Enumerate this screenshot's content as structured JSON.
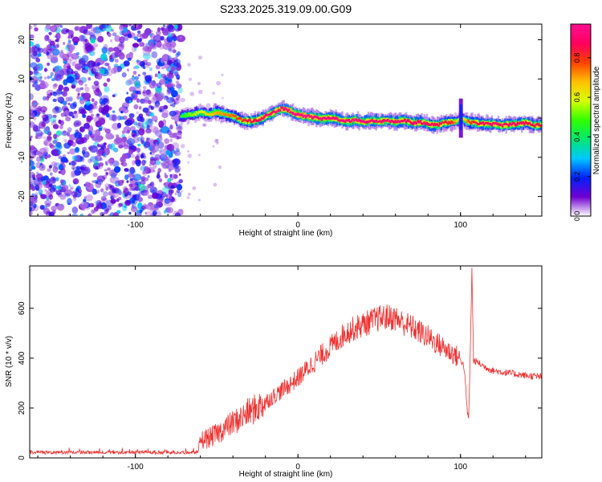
{
  "title": "S233.2025.319.09.00.G09",
  "chart_data": [
    {
      "type": "heatmap",
      "xlabel": "Height of straight line (km)",
      "ylabel": "Frequency (Hz)",
      "xlim": [
        -165,
        150
      ],
      "ylim": [
        -25,
        24
      ],
      "xticks": [
        -100,
        0,
        100
      ],
      "yticks": [
        -20,
        -10,
        0,
        10,
        20
      ],
      "colorbar": {
        "label": "Normalized spectral amplitude",
        "range": [
          0,
          0.97
        ],
        "ticks": [
          0.0,
          0.2,
          0.4,
          0.6,
          0.8
        ],
        "tick_labels": [
          "0.0",
          "0.2",
          "0.4",
          "0.6",
          "0.8"
        ],
        "colormap": [
          "#ffffff",
          "#7000d0",
          "#0020ff",
          "#00c8ff",
          "#00e870",
          "#30ff00",
          "#d8ff00",
          "#ffc000",
          "#ff4000",
          "#ff0060",
          "#ff1090"
        ]
      },
      "noise_region": {
        "x": [
          -165,
          -72
        ],
        "amplitude": [
          0.05,
          0.25
        ]
      },
      "ridge": {
        "x": [
          -72,
          -65,
          -60,
          -55,
          -50,
          -45,
          -40,
          -35,
          -30,
          -25,
          -20,
          -15,
          -10,
          -5,
          0,
          5,
          10,
          15,
          20,
          25,
          30,
          35,
          40,
          45,
          50,
          55,
          60,
          65,
          70,
          75,
          80,
          85,
          90,
          95,
          98,
          100,
          102,
          105,
          110,
          115,
          120,
          125,
          130,
          135,
          140,
          145,
          150
        ],
        "frequency": [
          0.5,
          1.0,
          1.5,
          1.0,
          1.5,
          1.0,
          0.5,
          -0.5,
          -0.8,
          -0.5,
          0.5,
          1.5,
          2.5,
          1.8,
          0.8,
          0.5,
          0.2,
          -0.2,
          0.0,
          -0.3,
          -0.8,
          -0.5,
          -1.0,
          -0.6,
          -0.8,
          -0.5,
          -1.0,
          -0.5,
          -1.2,
          -1.0,
          -1.5,
          -1.8,
          -1.2,
          -1.0,
          -0.8,
          0.0,
          -0.5,
          -1.0,
          -1.2,
          -1.5,
          -1.5,
          -1.8,
          -1.5,
          -1.5,
          -1.2,
          -1.8,
          -1.8
        ],
        "amplitude": [
          0.45,
          0.55,
          0.6,
          0.65,
          0.7,
          0.72,
          0.75,
          0.8,
          0.85,
          0.88,
          0.9,
          0.92,
          0.94,
          0.95,
          0.96,
          0.96,
          0.95,
          0.94,
          0.93,
          0.92,
          0.93,
          0.94,
          0.93,
          0.92,
          0.9,
          0.9,
          0.9,
          0.9,
          0.9,
          0.9,
          0.88,
          0.86,
          0.84,
          0.82,
          0.6,
          0.55,
          0.6,
          0.78,
          0.85,
          0.88,
          0.9,
          0.9,
          0.9,
          0.88,
          0.86,
          0.85,
          0.85
        ]
      }
    },
    {
      "type": "line",
      "xlabel": "Height of straight line (km)",
      "ylabel": "SNR (10 * v/v)",
      "xlim": [
        -165,
        150
      ],
      "ylim": [
        0,
        770
      ],
      "xticks": [
        -100,
        0,
        100
      ],
      "yticks": [
        0,
        200,
        400,
        600
      ],
      "line_color": "#f03030",
      "series": [
        {
          "x": [
            -165,
            -150,
            -130,
            -110,
            -90,
            -75,
            -65,
            -61,
            -60,
            -55,
            -50,
            -45,
            -40,
            -35,
            -30,
            -25,
            -20,
            -10,
            0,
            10,
            20,
            30,
            40,
            50,
            55,
            60,
            65,
            70,
            80,
            90,
            95,
            100,
            102,
            103,
            104,
            105,
            106,
            107,
            108,
            110,
            115,
            120,
            130,
            140,
            150
          ],
          "values": [
            22,
            22,
            22,
            22,
            22,
            22,
            22,
            22,
            70,
            80,
            95,
            120,
            140,
            160,
            185,
            200,
            225,
            270,
            320,
            385,
            445,
            505,
            535,
            560,
            565,
            560,
            540,
            525,
            485,
            440,
            420,
            395,
            370,
            300,
            200,
            150,
            420,
            760,
            390,
            385,
            365,
            350,
            340,
            330,
            325
          ]
        }
      ]
    }
  ]
}
